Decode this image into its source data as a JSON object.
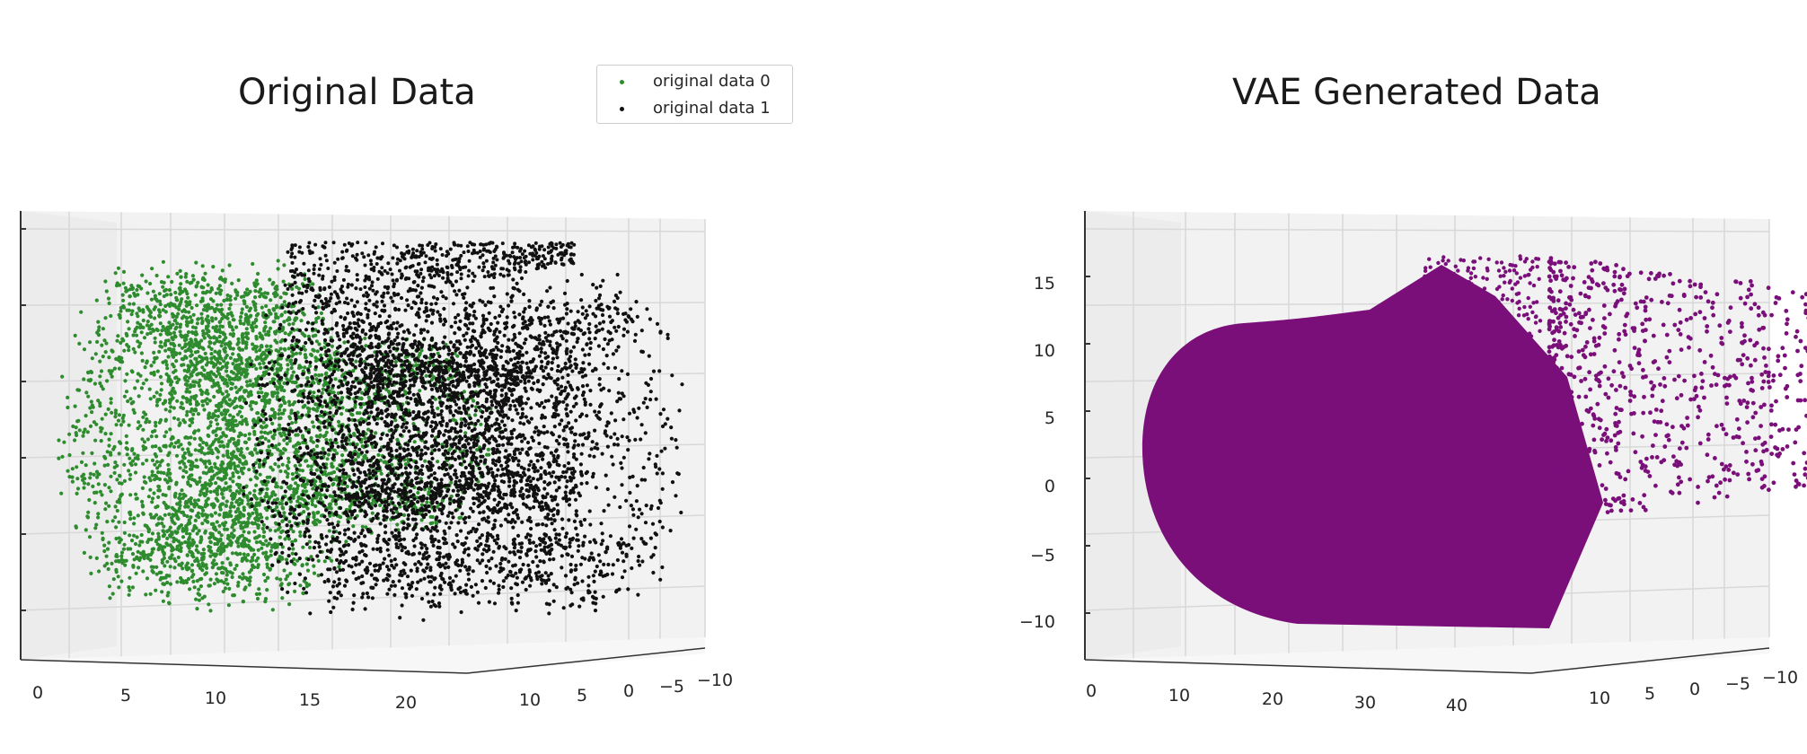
{
  "chart_data": [
    {
      "type": "scatter",
      "title": "Original Data",
      "projection": "3d",
      "legend": {
        "placement": "top-right",
        "entries": [
          "original data 0",
          "original data 1"
        ]
      },
      "x_ticks": [
        "0",
        "5",
        "10",
        "15",
        "20"
      ],
      "y_ticks": [
        "10",
        "5",
        "0",
        "−5",
        "−10"
      ],
      "z_ticks": [],
      "xlim": [
        -1,
        22
      ],
      "ylim": [
        -11,
        14
      ],
      "zlim": [
        -12,
        17
      ],
      "series": [
        {
          "name": "original data 0",
          "color": "#2e8b2e",
          "shape": "swiss-roll (cylinder segment)",
          "x_range": [
            0,
            11
          ],
          "y_range": [
            -10,
            13
          ],
          "z_range": [
            -11,
            15
          ]
        },
        {
          "name": "original data 1",
          "color": "#111111",
          "shape": "swiss-roll (cylinder segment)",
          "x_range": [
            9,
            21
          ],
          "y_range": [
            -10,
            13
          ],
          "z_range": [
            -11,
            15
          ]
        }
      ],
      "grid": true
    },
    {
      "type": "scatter",
      "title": "VAE Generated Data",
      "projection": "3d",
      "x_ticks": [
        "0",
        "10",
        "20",
        "30",
        "40"
      ],
      "y_ticks": [
        "10",
        "5",
        "0",
        "−5",
        "−10"
      ],
      "z_ticks": [
        "15",
        "10",
        "5",
        "0",
        "−5",
        "−10"
      ],
      "xlim": [
        -1,
        45
      ],
      "ylim": [
        -11,
        14
      ],
      "zlim": [
        -13,
        19
      ],
      "series": [
        {
          "color": "#7a0f7a",
          "shape": "dense blob with sparse right-side scatter",
          "x_range": [
            0,
            44
          ],
          "y_range": [
            -10,
            13
          ],
          "z_range": [
            -11,
            17
          ]
        }
      ],
      "grid": true
    }
  ]
}
